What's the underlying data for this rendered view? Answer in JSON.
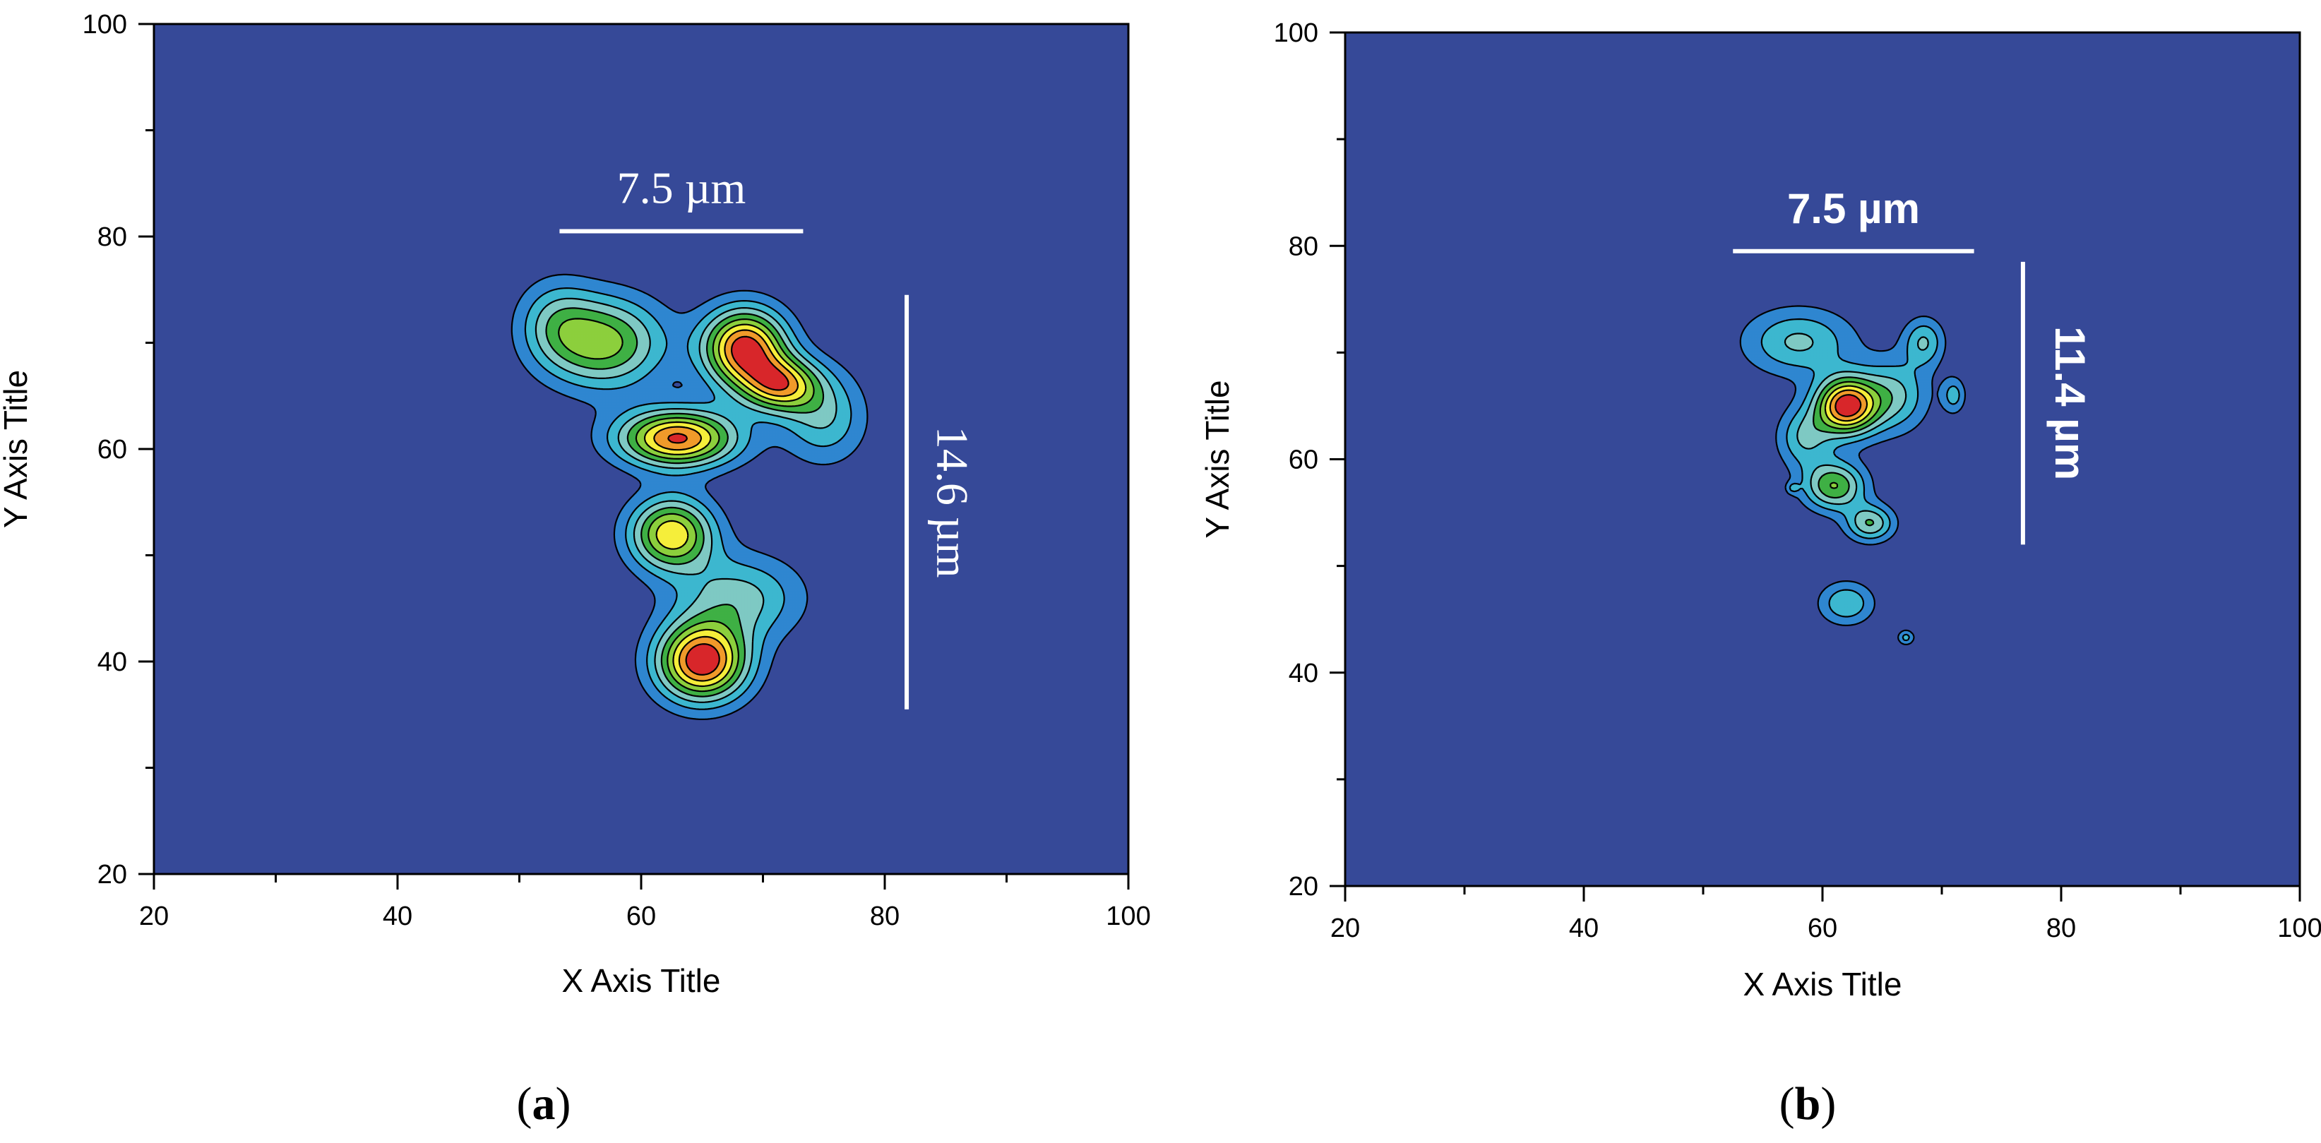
{
  "colors": {
    "background": "#364998",
    "levels": [
      "#364998",
      "#2f86d0",
      "#3cb7cf",
      "#7ec9c3",
      "#3fb044",
      "#8ccf3d",
      "#f5ee3a",
      "#f09a2a",
      "#d8262a"
    ],
    "contour_line": "#000000",
    "scalebar": "#ffffff"
  },
  "chart_data": [
    {
      "panel": "a",
      "type": "heatmap",
      "subtype": "filled-contour",
      "xlabel": "X Axis Title",
      "ylabel": "Y Axis Title",
      "xlim": [
        20,
        100
      ],
      "ylim": [
        20,
        100
      ],
      "x_ticks": [
        "20",
        "40",
        "60",
        "80",
        "100"
      ],
      "y_ticks": [
        "20",
        "40",
        "60",
        "80",
        "100"
      ],
      "grid": false,
      "peaks": [
        {
          "x": 57,
          "y": 70,
          "amp": 5.4,
          "sx": 3.4,
          "sy": 3.0
        },
        {
          "x": 68.5,
          "y": 69.5,
          "amp": 8.6,
          "sx": 2.4,
          "sy": 2.6
        },
        {
          "x": 71.5,
          "y": 66,
          "amp": 6.2,
          "sx": 2.2,
          "sy": 1.8
        },
        {
          "x": 75,
          "y": 63,
          "amp": 3.0,
          "sx": 2.4,
          "sy": 3.0
        },
        {
          "x": 63,
          "y": 61,
          "amp": 8.2,
          "sx": 3.4,
          "sy": 1.9
        },
        {
          "x": 62.5,
          "y": 52,
          "amp": 6.8,
          "sx": 2.4,
          "sy": 2.4
        },
        {
          "x": 68,
          "y": 46,
          "amp": 3.4,
          "sx": 3.6,
          "sy": 2.8
        },
        {
          "x": 65,
          "y": 40,
          "amp": 8.9,
          "sx": 2.6,
          "sy": 2.6
        },
        {
          "x": 53,
          "y": 72,
          "amp": 2.4,
          "sx": 2.2,
          "sy": 2.8
        }
      ],
      "scalebars": [
        {
          "orientation": "horizontal",
          "label": "7.5 µm",
          "from": 53.3,
          "to": 73.3,
          "at": 80.5
        },
        {
          "orientation": "vertical",
          "label": "14.6 µm",
          "from": 35.5,
          "to": 74.5,
          "at": 81.8
        }
      ],
      "panel_label": "(a)"
    },
    {
      "panel": "b",
      "type": "heatmap",
      "subtype": "filled-contour",
      "xlabel": "X Axis Title",
      "ylabel": "Y Axis Title",
      "xlim": [
        20,
        100
      ],
      "ylim": [
        20,
        100
      ],
      "x_ticks": [
        "20",
        "40",
        "60",
        "80",
        "100"
      ],
      "y_ticks": [
        "20",
        "40",
        "60",
        "80",
        "100"
      ],
      "grid": false,
      "peaks": [
        {
          "x": 62,
          "y": 65,
          "amp": 8.6,
          "sx": 1.8,
          "sy": 1.9
        },
        {
          "x": 61,
          "y": 57.5,
          "amp": 5.0,
          "sx": 1.8,
          "sy": 1.6
        },
        {
          "x": 64,
          "y": 54,
          "amp": 4.0,
          "sx": 1.4,
          "sy": 1.2
        },
        {
          "x": 58,
          "y": 71,
          "amp": 3.2,
          "sx": 3.2,
          "sy": 2.2
        },
        {
          "x": 66,
          "y": 66,
          "amp": 3.2,
          "sx": 2.0,
          "sy": 2.4
        },
        {
          "x": 58.5,
          "y": 62,
          "amp": 3.0,
          "sx": 1.6,
          "sy": 2.0
        },
        {
          "x": 68.5,
          "y": 71,
          "amp": 3.0,
          "sx": 1.2,
          "sy": 1.6
        },
        {
          "x": 62,
          "y": 46.5,
          "amp": 3.0,
          "sx": 1.6,
          "sy": 1.4
        },
        {
          "x": 71,
          "y": 66,
          "amp": 2.4,
          "sx": 0.7,
          "sy": 1.2
        },
        {
          "x": 67,
          "y": 43.3,
          "amp": 2.4,
          "sx": 0.5,
          "sy": 0.5
        },
        {
          "x": 57.5,
          "y": 57.3,
          "amp": 1.6,
          "sx": 0.4,
          "sy": 0.4
        }
      ],
      "scalebars": [
        {
          "orientation": "horizontal",
          "label": "7.5 µm",
          "from": 52.5,
          "to": 72.7,
          "at": 79.5
        },
        {
          "orientation": "vertical",
          "label": "11.4 µm",
          "from": 52,
          "to": 78.5,
          "at": 76.8
        }
      ],
      "panel_label": "(b)"
    }
  ]
}
